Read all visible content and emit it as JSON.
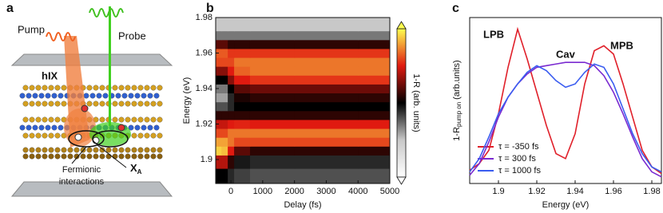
{
  "panel_labels": [
    "a",
    "b",
    "c"
  ],
  "schematic": {
    "pump": "Pump",
    "probe": "Probe",
    "hix": "hIX",
    "xa": {
      "main": "X",
      "sub": "A"
    },
    "fermionic": [
      "Fermionic",
      "interactions"
    ]
  },
  "chart_data": [
    {
      "type": "heatmap",
      "x_label": "Delay (fs)",
      "y_label": "Energy (eV)",
      "colorbar_label": "1-R (arb. units)",
      "xlim": [
        -480,
        5000
      ],
      "xticks": [
        0,
        1000,
        2000,
        3000,
        4000,
        5000
      ],
      "ylim": [
        1.8865,
        1.98
      ],
      "yticks": [
        1.9,
        1.92,
        1.94,
        1.96,
        1.98
      ],
      "zlim": [
        0,
        1
      ],
      "colormap": [
        "#ffffff",
        "#c8c8c8",
        "#000000",
        "#e01a10",
        "#ffff50"
      ],
      "x": [
        -400,
        -200,
        0,
        200,
        1000,
        3000,
        5000
      ],
      "y": [
        1.89,
        1.9,
        1.905,
        1.91,
        1.915,
        1.92,
        1.925,
        1.93,
        1.935,
        1.94,
        1.945,
        1.95,
        1.955,
        1.96,
        1.965,
        1.97,
        1.975
      ],
      "z": [
        [
          0.5,
          0.5,
          0.45,
          0.42,
          0.4,
          0.4,
          0.4
        ],
        [
          0.7,
          0.7,
          0.55,
          0.47,
          0.45,
          0.45,
          0.45
        ],
        [
          0.95,
          0.93,
          0.75,
          0.6,
          0.55,
          0.55,
          0.55
        ],
        [
          0.9,
          0.9,
          0.85,
          0.8,
          0.8,
          0.8,
          0.8
        ],
        [
          0.8,
          0.8,
          0.85,
          0.85,
          0.85,
          0.85,
          0.85
        ],
        [
          0.72,
          0.72,
          0.75,
          0.76,
          0.75,
          0.75,
          0.75
        ],
        [
          0.55,
          0.55,
          0.55,
          0.55,
          0.55,
          0.55,
          0.55
        ],
        [
          0.4,
          0.4,
          0.45,
          0.5,
          0.5,
          0.5,
          0.5
        ],
        [
          0.3,
          0.3,
          0.45,
          0.53,
          0.55,
          0.55,
          0.55
        ],
        [
          0.35,
          0.35,
          0.5,
          0.6,
          0.62,
          0.62,
          0.62
        ],
        [
          0.5,
          0.5,
          0.65,
          0.75,
          0.78,
          0.78,
          0.78
        ],
        [
          0.65,
          0.65,
          0.75,
          0.83,
          0.85,
          0.85,
          0.85
        ],
        [
          0.8,
          0.8,
          0.8,
          0.85,
          0.85,
          0.85,
          0.85
        ],
        [
          0.82,
          0.82,
          0.78,
          0.78,
          0.78,
          0.78,
          0.78
        ],
        [
          0.6,
          0.6,
          0.55,
          0.55,
          0.55,
          0.55,
          0.55
        ],
        [
          0.35,
          0.35,
          0.35,
          0.35,
          0.35,
          0.35,
          0.35
        ],
        [
          0.25,
          0.25,
          0.25,
          0.25,
          0.25,
          0.25,
          0.25
        ]
      ]
    },
    {
      "type": "line",
      "x_label": "Energy (eV)",
      "y_label": {
        "main": "1-R",
        "sub": "pump on",
        "suffix": "(arb.units)"
      },
      "annotations": [
        "LPB",
        "Cav",
        "MPB"
      ],
      "xlim": [
        1.885,
        1.985
      ],
      "xticks": [
        1.9,
        1.92,
        1.94,
        1.96,
        1.98
      ],
      "ylim": [
        0,
        1
      ],
      "x": [
        1.885,
        1.89,
        1.895,
        1.9,
        1.905,
        1.91,
        1.915,
        1.92,
        1.925,
        1.93,
        1.935,
        1.94,
        1.945,
        1.95,
        1.955,
        1.96,
        1.965,
        1.97,
        1.975,
        1.98,
        1.985
      ],
      "series": [
        {
          "name": "τ = -350 fs",
          "color": "#e0202a",
          "values": [
            0.08,
            0.12,
            0.2,
            0.42,
            0.7,
            0.93,
            0.75,
            0.55,
            0.35,
            0.18,
            0.15,
            0.3,
            0.6,
            0.8,
            0.83,
            0.78,
            0.6,
            0.4,
            0.2,
            0.1,
            0.06
          ]
        },
        {
          "name": "τ = 300 fs",
          "color": "#7a2ad0",
          "values": [
            0.05,
            0.12,
            0.25,
            0.4,
            0.52,
            0.6,
            0.66,
            0.7,
            0.71,
            0.72,
            0.73,
            0.73,
            0.73,
            0.71,
            0.65,
            0.55,
            0.42,
            0.28,
            0.15,
            0.07,
            0.04
          ]
        },
        {
          "name": "τ = 1000 fs",
          "color": "#3a5cf0",
          "values": [
            0.07,
            0.15,
            0.28,
            0.42,
            0.52,
            0.6,
            0.67,
            0.71,
            0.68,
            0.62,
            0.58,
            0.6,
            0.67,
            0.72,
            0.7,
            0.6,
            0.45,
            0.3,
            0.18,
            0.1,
            0.07
          ]
        }
      ]
    }
  ]
}
